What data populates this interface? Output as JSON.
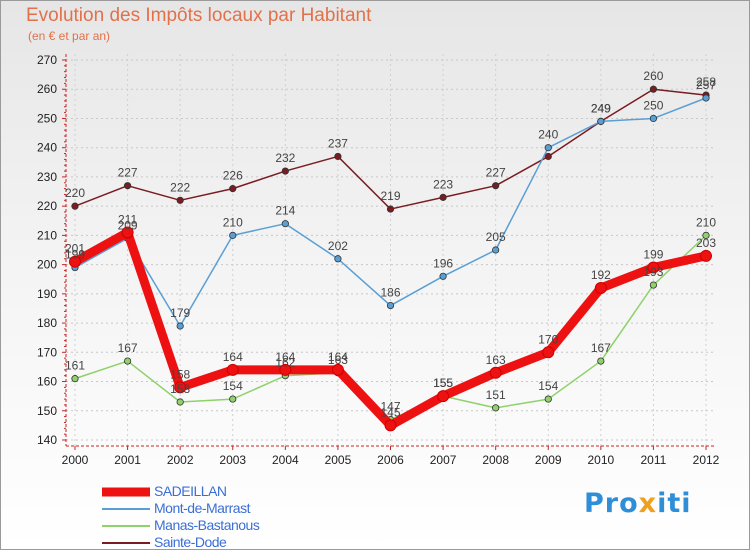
{
  "title": "Evolution des Impôts locaux par Habitant",
  "subtitle": "(en € et par an)",
  "brand": {
    "part1": "Pro",
    "part2": "x",
    "part3": "iti"
  },
  "chart_data": {
    "type": "line",
    "title": "Evolution des Impôts locaux par Habitant",
    "ylabel": "(en € et par an)",
    "xlabel": "",
    "ylim": [
      140,
      270
    ],
    "yticks": [
      140,
      150,
      160,
      170,
      180,
      190,
      200,
      210,
      220,
      230,
      240,
      250,
      260,
      270
    ],
    "categories": [
      "2000",
      "2001",
      "2002",
      "2003",
      "2004",
      "2005",
      "2006",
      "2007",
      "2008",
      "2009",
      "2010",
      "2011",
      "2012"
    ],
    "legend_position": "bottom-left",
    "series": [
      {
        "name": "Sainte-Dode",
        "color": "#7a1c22",
        "values": [
          220,
          227,
          222,
          226,
          232,
          237,
          219,
          223,
          227,
          237,
          249,
          260,
          258
        ],
        "labels": [
          "220",
          "227",
          "222",
          "226",
          "232",
          "237",
          "219",
          "223",
          "227",
          "",
          "249",
          "260",
          "258"
        ]
      },
      {
        "name": "Mont-de-Marrast",
        "color": "#5a9fd4",
        "values": [
          199,
          209,
          179,
          210,
          214,
          202,
          186,
          196,
          205,
          240,
          249,
          250,
          257
        ],
        "labels": [
          "199",
          "209",
          "179",
          "210",
          "214",
          "202",
          "186",
          "196",
          "205",
          "240",
          "249",
          "250",
          "257"
        ]
      },
      {
        "name": "Manas-Bastanous",
        "color": "#8fd16a",
        "values": [
          161,
          167,
          153,
          154,
          162,
          163,
          147,
          155,
          151,
          154,
          167,
          193,
          210
        ],
        "labels": [
          "161",
          "167",
          "153",
          "154",
          "162",
          "163",
          "147",
          "155",
          "151",
          "154",
          "167",
          "193",
          "210"
        ]
      },
      {
        "name": "SADEILLAN",
        "color": "#ee1111",
        "values": [
          201,
          211,
          158,
          164,
          164,
          164,
          145,
          155,
          163,
          170,
          192,
          199,
          203
        ],
        "labels": [
          "201",
          "211",
          "158",
          "164",
          "164",
          "164",
          "145",
          "155",
          "163",
          "170",
          "192",
          "199",
          "203"
        ]
      }
    ]
  },
  "legend": [
    {
      "name": "SADEILLAN"
    },
    {
      "name": "Mont-de-Marrast"
    },
    {
      "name": "Manas-Bastanous"
    },
    {
      "name": "Sainte-Dode"
    }
  ]
}
